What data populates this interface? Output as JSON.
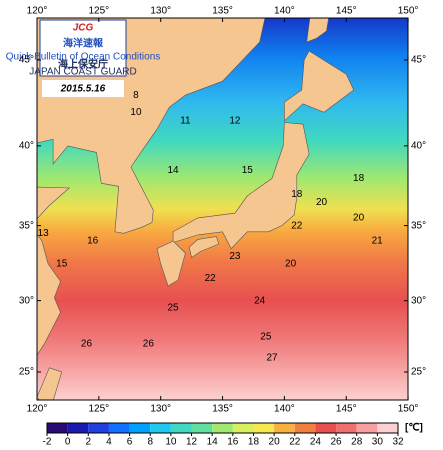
{
  "header": {
    "logo": "JCG",
    "title": "海洋速報",
    "subtitle": "Quick Bulletin of Ocean Conditions",
    "org": "海上保安庁",
    "org_en": "JAPAN COAST GUARD",
    "date": "2015.5.16"
  },
  "map": {
    "lon_ticks": [
      {
        "value": 120,
        "label": "120°"
      },
      {
        "value": 125,
        "label": "125°"
      },
      {
        "value": 130,
        "label": "130°"
      },
      {
        "value": 135,
        "label": "135°"
      },
      {
        "value": 140,
        "label": "140°"
      },
      {
        "value": 145,
        "label": "145°"
      },
      {
        "value": 150,
        "label": "150°"
      }
    ],
    "lat_ticks": [
      {
        "value": 45,
        "label": "45°"
      },
      {
        "value": 40,
        "label": "40°"
      },
      {
        "value": 35,
        "label": "35°"
      },
      {
        "value": 30,
        "label": "30°"
      },
      {
        "value": 25,
        "label": "25°"
      }
    ],
    "contour_labels": [
      "8",
      "10",
      "11",
      "12",
      "14",
      "15",
      "13",
      "15",
      "16",
      "18",
      "20",
      "21",
      "22",
      "23",
      "20",
      "22",
      "24",
      "25",
      "26",
      "25",
      "26",
      "27",
      "18",
      "20"
    ]
  },
  "colorbar": {
    "ticks": [
      -2,
      0,
      2,
      4,
      6,
      8,
      10,
      12,
      14,
      16,
      18,
      20,
      22,
      24,
      26,
      28,
      30,
      32
    ],
    "unit": "[℃]"
  }
}
